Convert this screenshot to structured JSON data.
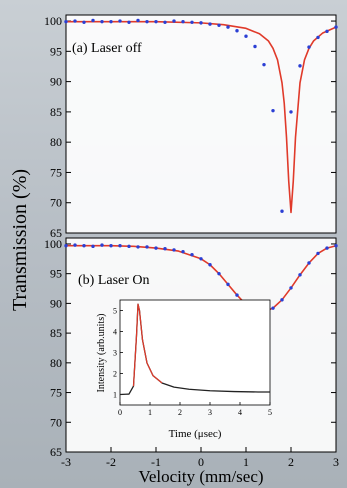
{
  "chart_data": [
    {
      "type": "scatter",
      "panel_label": "(a) Laser off",
      "label_color": "#3a4fb0",
      "xlim": [
        -3,
        3
      ],
      "ylim": [
        65,
        101
      ],
      "yticks": [
        65,
        70,
        75,
        80,
        85,
        90,
        95,
        100
      ],
      "series": [
        {
          "kind": "points",
          "color": "#2b3fd4",
          "x": [
            -3.0,
            -2.8,
            -2.6,
            -2.4,
            -2.2,
            -2.0,
            -1.8,
            -1.6,
            -1.4,
            -1.2,
            -1.0,
            -0.8,
            -0.6,
            -0.4,
            -0.2,
            0.0,
            0.2,
            0.4,
            0.6,
            0.8,
            1.0,
            1.2,
            1.4,
            1.6,
            1.8,
            2.0,
            2.2,
            2.4,
            2.6,
            2.8,
            3.0
          ],
          "y": [
            99.9,
            100.0,
            99.8,
            100.1,
            99.9,
            99.9,
            100.0,
            99.8,
            100.1,
            99.9,
            99.9,
            99.8,
            100.0,
            99.9,
            99.8,
            99.7,
            99.5,
            99.3,
            99.0,
            98.4,
            97.5,
            95.8,
            92.8,
            85.2,
            68.6,
            85.0,
            92.6,
            95.7,
            97.3,
            98.3,
            99.0
          ]
        },
        {
          "kind": "fit",
          "color": "#e03a2a",
          "x": [
            -3.0,
            -2.0,
            -1.0,
            0.0,
            0.5,
            1.0,
            1.3,
            1.5,
            1.6,
            1.7,
            1.8,
            1.85,
            1.9,
            1.95,
            2.0,
            2.05,
            2.1,
            2.2,
            2.3,
            2.4,
            2.5,
            2.7,
            3.0
          ],
          "y": [
            99.9,
            99.9,
            99.9,
            99.7,
            99.4,
            98.8,
            97.9,
            96.7,
            95.5,
            93.6,
            89.8,
            86.4,
            80.8,
            73.5,
            68.4,
            73.5,
            80.8,
            89.8,
            93.6,
            95.5,
            96.7,
            98.0,
            99.0
          ]
        }
      ]
    },
    {
      "type": "scatter",
      "panel_label": "(b) Laser On",
      "label_color": "#e05a2a",
      "xlim": [
        -3,
        3
      ],
      "ylim": [
        65,
        101
      ],
      "yticks": [
        65,
        70,
        75,
        80,
        85,
        90,
        95,
        100
      ],
      "xticks": [
        -3,
        -2,
        -1,
        0,
        1,
        2,
        3
      ],
      "xlabel": "Velocity (mm/sec)",
      "shared_ylabel": "Transmission (%)",
      "series": [
        {
          "kind": "points",
          "color": "#2b3fd4",
          "x": [
            -3.0,
            -2.8,
            -2.6,
            -2.4,
            -2.2,
            -2.0,
            -1.8,
            -1.6,
            -1.4,
            -1.2,
            -1.0,
            -0.8,
            -0.6,
            -0.4,
            -0.2,
            0.0,
            0.2,
            0.4,
            0.6,
            0.8,
            1.0,
            1.2,
            1.4,
            1.6,
            1.8,
            2.0,
            2.2,
            2.4,
            2.6,
            2.8,
            3.0
          ],
          "y": [
            99.7,
            99.8,
            99.7,
            99.6,
            99.8,
            99.7,
            99.7,
            99.6,
            99.5,
            99.5,
            99.3,
            99.2,
            99.0,
            98.7,
            98.2,
            97.5,
            96.5,
            95.0,
            93.2,
            91.4,
            89.8,
            88.8,
            88.6,
            89.2,
            90.6,
            92.6,
            94.8,
            96.8,
            98.4,
            99.3,
            99.7
          ]
        },
        {
          "kind": "fit",
          "color": "#e03a2a",
          "x": [
            -3.0,
            -2.5,
            -2.0,
            -1.5,
            -1.0,
            -0.5,
            0.0,
            0.2,
            0.4,
            0.6,
            0.8,
            1.0,
            1.2,
            1.4,
            1.6,
            1.8,
            2.0,
            2.2,
            2.4,
            2.6,
            2.8,
            3.0
          ],
          "y": [
            99.7,
            99.7,
            99.7,
            99.6,
            99.3,
            98.8,
            97.5,
            96.5,
            95.0,
            93.2,
            91.4,
            89.8,
            88.8,
            88.6,
            89.2,
            90.6,
            92.6,
            94.8,
            96.8,
            98.4,
            99.3,
            99.7
          ]
        }
      ],
      "inset": {
        "xlabel": "Time (μsec)",
        "ylabel": "Intensity (arb.units)",
        "xlim": [
          0,
          5
        ],
        "ylim": [
          0.5,
          5.5
        ],
        "xticks": [
          0,
          1,
          2,
          3,
          4,
          5
        ],
        "yticks": [
          1,
          2,
          3,
          4,
          5
        ],
        "series": [
          {
            "kind": "decay",
            "color": "#222222",
            "x": [
              0.0,
              0.3,
              0.45,
              0.55,
              0.6,
              0.65,
              0.75,
              0.9,
              1.1,
              1.4,
              1.8,
              2.3,
              3.0,
              3.8,
              4.6,
              5.0
            ],
            "y": [
              1.0,
              1.02,
              1.4,
              3.8,
              5.3,
              5.0,
              3.6,
              2.5,
              1.9,
              1.55,
              1.35,
              1.25,
              1.18,
              1.14,
              1.12,
              1.12
            ]
          },
          {
            "kind": "fit",
            "color": "#e03a2a",
            "x": [
              0.45,
              0.55,
              0.6,
              0.65,
              0.75,
              0.9,
              1.1,
              1.4
            ],
            "y": [
              1.4,
              3.8,
              5.3,
              5.0,
              3.6,
              2.5,
              1.9,
              1.55
            ]
          }
        ]
      }
    }
  ]
}
